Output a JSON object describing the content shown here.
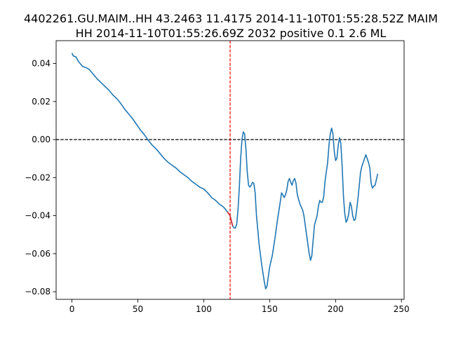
{
  "chart_data": {
    "type": "line",
    "title_lines": [
      "4402261.GU.MAIM..HH 43.2463 11.4175 2014-11-10T01:55:28.52Z MAIM",
      "HH 2014-11-10T01:55:26.69Z 2032 positive 0.1 2.6 ML"
    ],
    "xlabel": "",
    "ylabel": "",
    "xlim": [
      -12,
      252
    ],
    "ylim": [
      -0.084,
      0.052
    ],
    "x_ticks": [
      0,
      50,
      100,
      150,
      200,
      250
    ],
    "x_tick_labels": [
      "0",
      "50",
      "100",
      "150",
      "200",
      "250"
    ],
    "y_ticks": [
      0.04,
      0.02,
      0.0,
      -0.02,
      -0.04,
      -0.06,
      -0.08
    ],
    "y_tick_labels": [
      "0.04",
      "0.02",
      "0.00",
      "−0.02",
      "−0.04",
      "−0.06",
      "−0.08"
    ],
    "grid": false,
    "colors": {
      "series": "#1f77b4",
      "zero_line": "#000000",
      "pick_line": "#ff0000",
      "red_segment": "#d62728"
    },
    "reference_lines": [
      {
        "orientation": "horizontal",
        "value": 0.0,
        "style": "dashed",
        "color": "#000000"
      },
      {
        "orientation": "vertical",
        "value": 120,
        "style": "dashed",
        "color": "#ff0000"
      }
    ],
    "series": [
      {
        "color": "#1f77b4",
        "points": [
          [
            0,
            0.0455
          ],
          [
            1,
            0.044
          ],
          [
            3,
            0.0435
          ],
          [
            5,
            0.041
          ],
          [
            8,
            0.0385
          ],
          [
            10,
            0.038
          ],
          [
            13,
            0.037
          ],
          [
            16,
            0.0345
          ],
          [
            19,
            0.032
          ],
          [
            22,
            0.03
          ],
          [
            25,
            0.028
          ],
          [
            28,
            0.026
          ],
          [
            31,
            0.0235
          ],
          [
            34,
            0.0215
          ],
          [
            37,
            0.019
          ],
          [
            40,
            0.016
          ],
          [
            43,
            0.0135
          ],
          [
            46,
            0.011
          ],
          [
            49,
            0.008
          ],
          [
            52,
            0.005
          ],
          [
            55,
            0.0025
          ],
          [
            58,
            -0.0005
          ],
          [
            61,
            -0.003
          ],
          [
            64,
            -0.005
          ],
          [
            67,
            -0.0075
          ],
          [
            70,
            -0.01
          ],
          [
            73,
            -0.012
          ],
          [
            76,
            -0.0135
          ],
          [
            79,
            -0.015
          ],
          [
            82,
            -0.017
          ],
          [
            85,
            -0.0185
          ],
          [
            88,
            -0.02
          ],
          [
            91,
            -0.022
          ],
          [
            94,
            -0.0235
          ],
          [
            97,
            -0.025
          ],
          [
            100,
            -0.026
          ],
          [
            103,
            -0.028
          ],
          [
            106,
            -0.0305
          ],
          [
            109,
            -0.032
          ],
          [
            112,
            -0.034
          ],
          [
            115,
            -0.0355
          ],
          [
            118,
            -0.038
          ],
          [
            120,
            -0.04
          ],
          [
            121,
            -0.043
          ],
          [
            122,
            -0.0455
          ],
          [
            123,
            -0.0465
          ],
          [
            124,
            -0.0465
          ],
          [
            125,
            -0.0445
          ],
          [
            126,
            -0.037
          ],
          [
            127,
            -0.025
          ],
          [
            128,
            -0.01
          ],
          [
            129,
            0.0
          ],
          [
            130,
            0.004
          ],
          [
            131,
            0.003
          ],
          [
            132,
            -0.005
          ],
          [
            133,
            -0.017
          ],
          [
            134,
            -0.024
          ],
          [
            135,
            -0.025
          ],
          [
            136,
            -0.024
          ],
          [
            137,
            -0.0225
          ],
          [
            138,
            -0.023
          ],
          [
            139,
            -0.028
          ],
          [
            140,
            -0.04
          ],
          [
            142,
            -0.055
          ],
          [
            144,
            -0.066
          ],
          [
            146,
            -0.075
          ],
          [
            147,
            -0.0785
          ],
          [
            148,
            -0.077
          ],
          [
            150,
            -0.067
          ],
          [
            152,
            -0.061
          ],
          [
            154,
            -0.052
          ],
          [
            156,
            -0.042
          ],
          [
            158,
            -0.033
          ],
          [
            159,
            -0.028
          ],
          [
            160,
            -0.029
          ],
          [
            161,
            -0.0305
          ],
          [
            162,
            -0.029
          ],
          [
            163,
            -0.0265
          ],
          [
            164,
            -0.022
          ],
          [
            165,
            -0.0205
          ],
          [
            166,
            -0.0225
          ],
          [
            167,
            -0.024
          ],
          [
            168,
            -0.0215
          ],
          [
            169,
            -0.0205
          ],
          [
            170,
            -0.023
          ],
          [
            171,
            -0.029
          ],
          [
            173,
            -0.034
          ],
          [
            175,
            -0.037
          ],
          [
            176,
            -0.04
          ],
          [
            178,
            -0.05
          ],
          [
            180,
            -0.06
          ],
          [
            181,
            -0.0635
          ],
          [
            182,
            -0.061
          ],
          [
            184,
            -0.045
          ],
          [
            186,
            -0.04
          ],
          [
            187,
            -0.035
          ],
          [
            188,
            -0.032
          ],
          [
            189,
            -0.033
          ],
          [
            190,
            -0.033
          ],
          [
            191,
            -0.03
          ],
          [
            192,
            -0.022
          ],
          [
            194,
            -0.012
          ],
          [
            195,
            -0.003
          ],
          [
            196,
            0.003
          ],
          [
            197,
            0.006
          ],
          [
            198,
            0.003
          ],
          [
            199,
            -0.006
          ],
          [
            200,
            -0.011
          ],
          [
            201,
            -0.01
          ],
          [
            202,
            -0.003
          ],
          [
            203,
            0.001
          ],
          [
            204,
            -0.002
          ],
          [
            205,
            -0.014
          ],
          [
            206,
            -0.03
          ],
          [
            207,
            -0.039
          ],
          [
            208,
            -0.0435
          ],
          [
            209,
            -0.042
          ],
          [
            210,
            -0.039
          ],
          [
            211,
            -0.033
          ],
          [
            212,
            -0.035
          ],
          [
            213,
            -0.04
          ],
          [
            214,
            -0.0425
          ],
          [
            215,
            -0.042
          ],
          [
            216,
            -0.037
          ],
          [
            217,
            -0.031
          ],
          [
            218,
            -0.024
          ],
          [
            219,
            -0.017
          ],
          [
            220,
            -0.014
          ],
          [
            221,
            -0.012
          ],
          [
            222,
            -0.01
          ],
          [
            223,
            -0.008
          ],
          [
            224,
            -0.01
          ],
          [
            225,
            -0.012
          ],
          [
            226,
            -0.015
          ],
          [
            227,
            -0.023
          ],
          [
            228,
            -0.0255
          ],
          [
            229,
            -0.0245
          ],
          [
            230,
            -0.024
          ],
          [
            231,
            -0.021
          ],
          [
            232,
            -0.018
          ]
        ]
      }
    ]
  }
}
